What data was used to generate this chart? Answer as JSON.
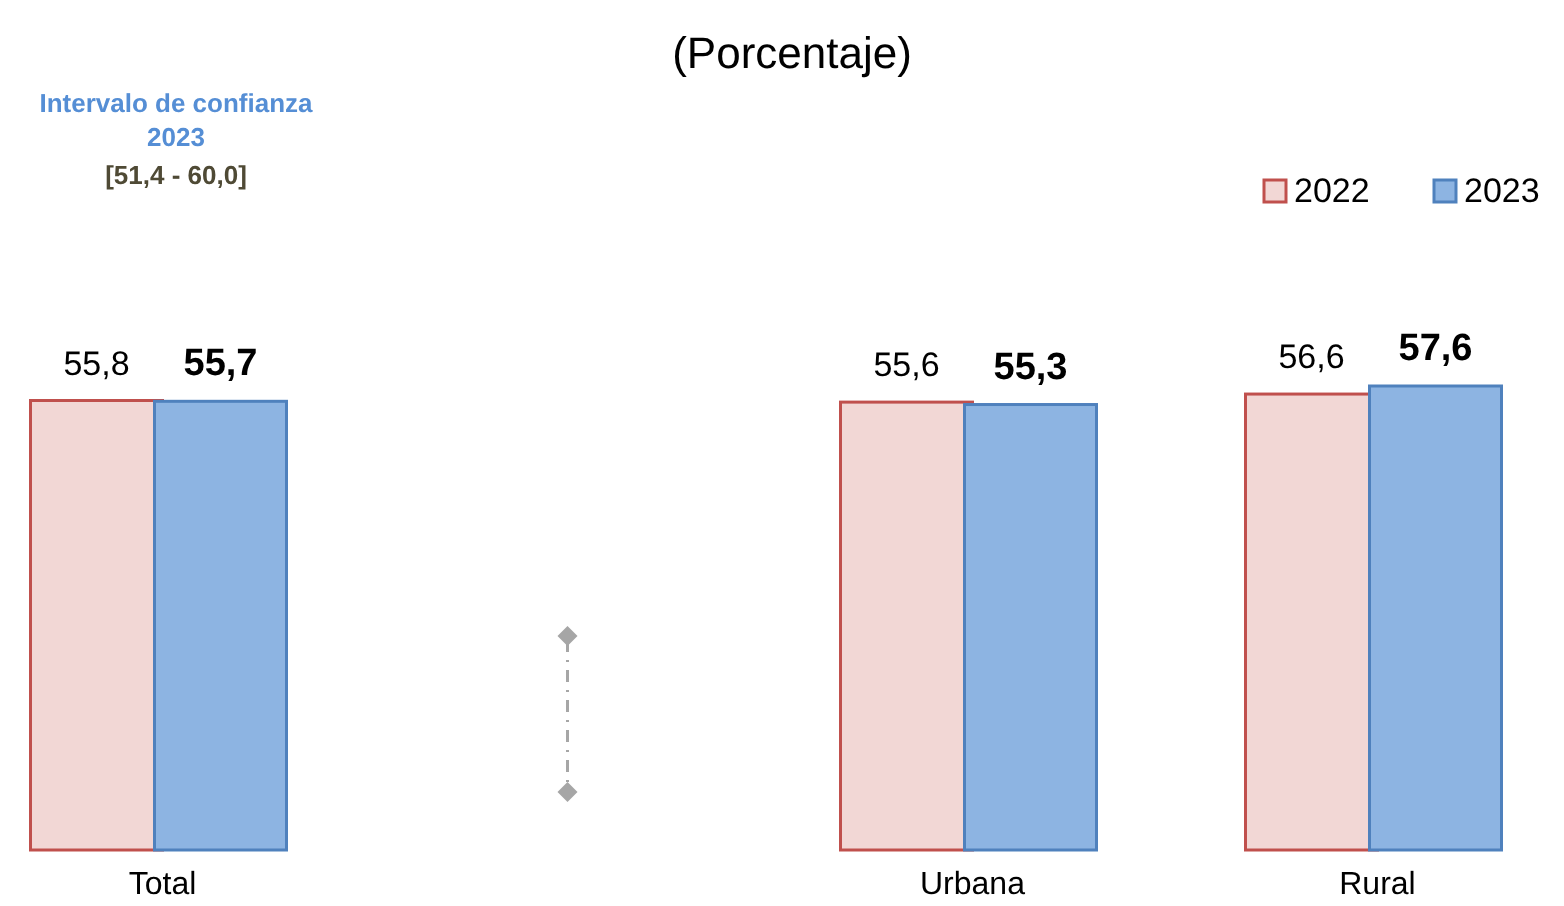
{
  "chart_data": {
    "type": "bar",
    "title": "(Porcentaje)",
    "categories": [
      "Total",
      null,
      "Urbana",
      "Rural"
    ],
    "series": [
      {
        "name": "2022",
        "color": "#f2d7d5",
        "values": [
          55.8,
          null,
          55.6,
          56.6
        ],
        "value_labels": [
          "55,8",
          null,
          "55,6",
          "56,6"
        ]
      },
      {
        "name": "2023",
        "color": "#8db4e2",
        "values": [
          55.7,
          null,
          55.3,
          57.6
        ],
        "value_labels": [
          "55,7",
          null,
          "55,3",
          "57,6"
        ]
      }
    ],
    "annotations": [
      "Intervalo de confianza 2023",
      "[51,4 - 60,0]"
    ],
    "legend": "top right"
  }
}
